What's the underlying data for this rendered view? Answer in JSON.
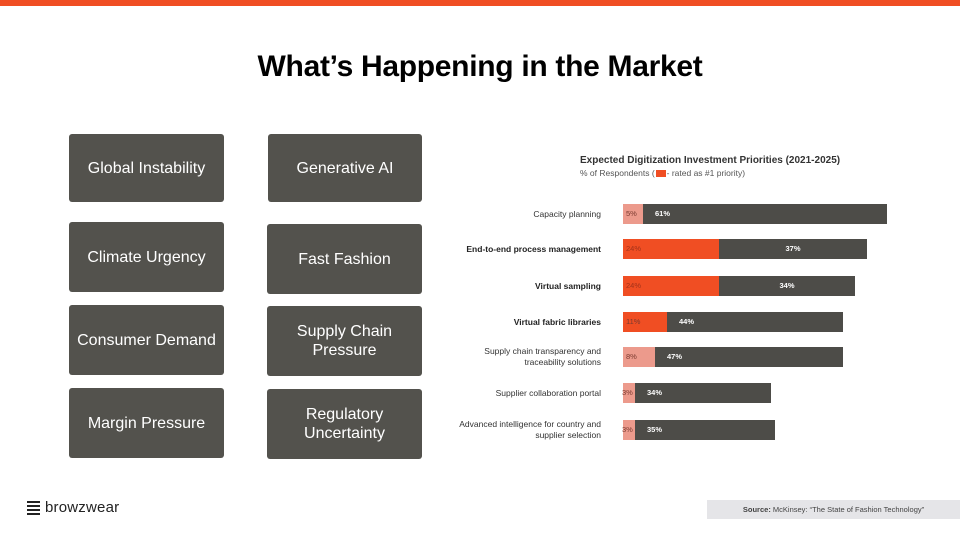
{
  "slide": {
    "title": "What’s Happening in the Market",
    "accent_color": "#f04e23",
    "tile_color": "#53524d",
    "tiles": [
      {
        "label": "Global Instability"
      },
      {
        "label": "Generative AI"
      },
      {
        "label": "Climate Urgency"
      },
      {
        "label": "Fast Fashion"
      },
      {
        "label": "Consumer Demand"
      },
      {
        "label": "Supply Chain Pressure"
      },
      {
        "label": "Margin Pressure"
      },
      {
        "label": "Regulatory Uncertainty"
      }
    ]
  },
  "chart_data": {
    "type": "bar",
    "orientation": "horizontal",
    "stacked": true,
    "title": "Expected Digitization Investment Priorities (2021-2025)",
    "subtitle_prefix": "% of Respondents (",
    "subtitle_suffix": "- rated as #1 priority)",
    "categories": [
      "Capacity planning",
      "End-to-end process management",
      "Virtual sampling",
      "Virtual fabric libraries",
      "Supply chain transparency and traceability solutions",
      "Supplier collaboration portal",
      "Advanced intelligence for country and supplier selection"
    ],
    "bold_categories": [
      false,
      true,
      true,
      true,
      false,
      false,
      false
    ],
    "series": [
      {
        "name": "rated as #1 priority",
        "values": [
          5,
          24,
          24,
          11,
          8,
          3,
          3
        ]
      },
      {
        "values": [
          61,
          37,
          34,
          44,
          47,
          34,
          35
        ]
      }
    ],
    "value_labels": {
      "first": [
        "5%",
        "24%",
        "24%",
        "11%",
        "8%",
        "3%",
        "3%"
      ],
      "second": [
        "61%",
        "37%",
        "34%",
        "44%",
        "47%",
        "34%",
        "35%"
      ]
    },
    "colors": {
      "first_highlight": "#f04e23",
      "first_light": "#ec9a8c",
      "second": "#4d4c48",
      "first_label_on_light": "#7a3a30",
      "first_label_on_highlight": "#a3321a",
      "second_label": "#ffffff"
    },
    "grid": false,
    "legend": "inline in subtitle"
  },
  "footer": {
    "logo_text": "browzwear",
    "source_label": "Source:",
    "source_text": "McKinsey: “The State of Fashion Technology”"
  }
}
